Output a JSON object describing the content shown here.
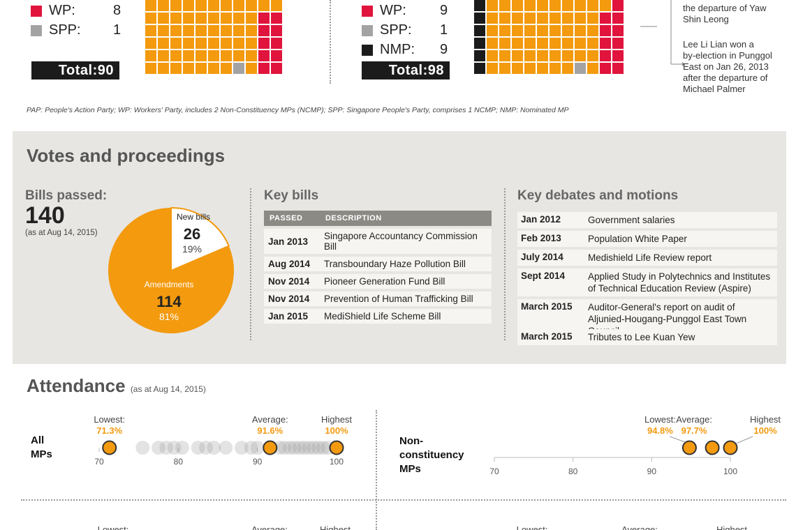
{
  "seats_before": {
    "legend": [
      {
        "label": "WP:",
        "value": "8",
        "color": "#e0143c"
      },
      {
        "label": "SPP:",
        "value": "1",
        "color": "#a3a3a3"
      }
    ],
    "total_label": "Total:",
    "total_value": "90"
  },
  "seats_after": {
    "legend": [
      {
        "label": "WP:",
        "value": "9",
        "color": "#e0143c"
      },
      {
        "label": "SPP:",
        "value": "1",
        "color": "#a3a3a3"
      },
      {
        "label": "NMP:",
        "value": "9",
        "color": "#1b1b1b"
      }
    ],
    "total_label": "Total:",
    "total_value": "98"
  },
  "colors": {
    "pap": "#f39a0f",
    "wp": "#e0143c",
    "spp": "#a3a3a3",
    "nmp": "#1b1b1b"
  },
  "notes": {
    "note1": [
      "the departure of Yaw",
      "Shin Leong"
    ],
    "note2": [
      "Lee Li Lian won a",
      "by-election in Punggol",
      "East on Jan 26, 2013",
      "after the departure of",
      "Michael Palmer"
    ]
  },
  "footnote": "PAP: People's Action Party; WP: Workers' Party, includes 2 Non-Constituency MPs (NCMP); SPP: Singapore People's Party, comprises 1 NCMP; NMP: Nominated MP",
  "votes": {
    "title": "Votes and proceedings",
    "bills_label": "Bills passed:",
    "bills_value": "140",
    "bills_asat": "(as at Aug 14, 2015)"
  },
  "chart_data": {
    "type": "pie",
    "title": "Bills passed:",
    "slices": [
      {
        "label": "New bills",
        "value": 26,
        "percent": "19%",
        "color": "#ffffff"
      },
      {
        "label": "Amendments",
        "value": 114,
        "percent": "81%",
        "color": "#f39a0f"
      }
    ]
  },
  "key_bills": {
    "title": "Key bills",
    "headers": [
      "PASSED",
      "DESCRIPTION"
    ],
    "rows": [
      [
        "Jan 2013",
        "Singapore Accountancy Commission Bill"
      ],
      [
        "Aug 2014",
        "Transboundary Haze Pollution Bill"
      ],
      [
        "Nov 2014",
        "Pioneer Generation Fund Bill"
      ],
      [
        "Nov 2014",
        "Prevention of Human Trafficking Bill"
      ],
      [
        "Jan 2015",
        "MediShield Life Scheme Bill"
      ]
    ]
  },
  "key_debates": {
    "title": "Key debates and motions",
    "rows": [
      {
        "date": "Jan 2012",
        "lines": [
          "Government salaries"
        ]
      },
      {
        "date": "Feb 2013",
        "lines": [
          "Population White Paper"
        ]
      },
      {
        "date": "July 2014",
        "lines": [
          "Medishield Life Review report"
        ]
      },
      {
        "date": "Sept 2014",
        "lines": [
          "Applied Study in Polytechnics and Institutes",
          "of Technical Education Review (Aspire)"
        ]
      },
      {
        "date": "March 2015",
        "lines": [
          "Auditor-General's report on audit of",
          "Aljunied-Hougang-Punggol East Town Council"
        ]
      },
      {
        "date": "March 2015",
        "lines": [
          "Tributes to Lee Kuan Yew"
        ]
      }
    ]
  },
  "attendance": {
    "title": "Attendance",
    "asat": "(as at Aug 14, 2015)",
    "groups": [
      {
        "name_lines": [
          "All",
          "MPs"
        ],
        "lowest_label": "Lowest:",
        "lowest_value": "71.3%",
        "lowest": 71.3,
        "average_label": "Average:",
        "average_value": "91.6%",
        "average": 91.6,
        "highest_label": "Highest",
        "highest_value": "100%",
        "highest": 100,
        "ticks": [
          "70",
          "80",
          "90",
          "100"
        ],
        "others": [
          75.5,
          77.5,
          78.5,
          79.5,
          80.5,
          82.5,
          83.5,
          84.5,
          86,
          88,
          89.2,
          90,
          92.8,
          93.4,
          94.1,
          94.7,
          95.3,
          95.9,
          96.5,
          97.1,
          97.7,
          98.3,
          98.9
        ]
      },
      {
        "name_lines": [
          "Non-",
          "constituency",
          "MPs"
        ],
        "lowest_label": "Lowest:",
        "lowest_value": "94.8%",
        "lowest": 94.8,
        "average_label": "Average:",
        "average_value": "97.7%",
        "average": 97.7,
        "highest_label": "Highest",
        "highest_value": "100%",
        "highest": 100,
        "ticks": [
          "70",
          "80",
          "90",
          "100"
        ],
        "others": []
      }
    ],
    "next_row_labels": {
      "lowest": "Lowest:",
      "average": "Average:",
      "highest": "Highest"
    }
  }
}
